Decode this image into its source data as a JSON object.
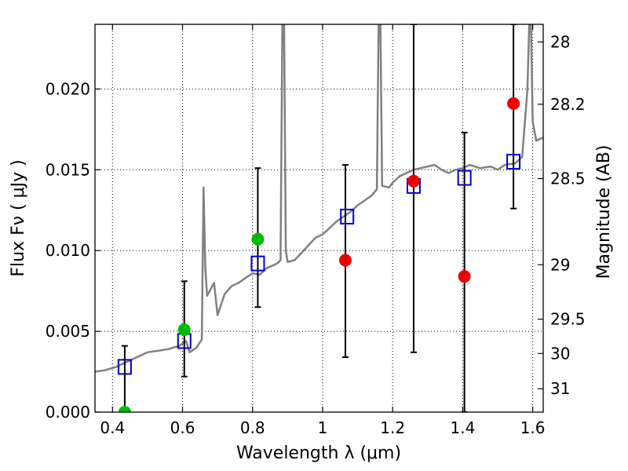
{
  "chart_data": {
    "type": "scatter",
    "xlabel": "Wavelength  λ (μm)",
    "ylabel": "Flux  Fν  ( μJy )",
    "y2label": "Magnitude (AB)",
    "xlim": [
      0.35,
      1.63
    ],
    "ylim": [
      0.0,
      0.024
    ],
    "grid": true,
    "x_ticks": [
      {
        "v": 0.4,
        "label": "0.4"
      },
      {
        "v": 0.6,
        "label": "0.6"
      },
      {
        "v": 0.8,
        "label": "0.8"
      },
      {
        "v": 1.0,
        "label": "1"
      },
      {
        "v": 1.2,
        "label": "1.2"
      },
      {
        "v": 1.4,
        "label": "1.4"
      },
      {
        "v": 1.6,
        "label": "1.6"
      }
    ],
    "y_ticks": [
      {
        "v": 0.0,
        "label": "0.000"
      },
      {
        "v": 0.005,
        "label": "0.005"
      },
      {
        "v": 0.01,
        "label": "0.010"
      },
      {
        "v": 0.015,
        "label": "0.015"
      },
      {
        "v": 0.02,
        "label": "0.020"
      }
    ],
    "mag_ticks": [
      {
        "v": 28,
        "label": "28"
      },
      {
        "v": 28.2,
        "label": "28.2"
      },
      {
        "v": 28.5,
        "label": "28.5"
      },
      {
        "v": 29,
        "label": "29"
      },
      {
        "v": 29.5,
        "label": "29.5"
      },
      {
        "v": 30,
        "label": "30"
      },
      {
        "v": 31,
        "label": "31"
      }
    ],
    "colors": {
      "spectrum": "#808080",
      "model_squares": "#0000cc",
      "detections_green": "#00bb00",
      "detections_red": "#ee0000",
      "errorbars": "#000000"
    },
    "series": [
      {
        "kind": "spectrum",
        "x": [
          0.35,
          0.38,
          0.41,
          0.44,
          0.47,
          0.5,
          0.53,
          0.56,
          0.59,
          0.61,
          0.62,
          0.64,
          0.655,
          0.66,
          0.665,
          0.67,
          0.69,
          0.7,
          0.72,
          0.74,
          0.76,
          0.78,
          0.8,
          0.82,
          0.84,
          0.86,
          0.87,
          0.88,
          0.885,
          0.89,
          0.895,
          0.9,
          0.92,
          0.95,
          0.98,
          1.0,
          1.02,
          1.04,
          1.06,
          1.08,
          1.1,
          1.12,
          1.14,
          1.155,
          1.16,
          1.165,
          1.17,
          1.19,
          1.2,
          1.22,
          1.24,
          1.26,
          1.28,
          1.3,
          1.32,
          1.34,
          1.36,
          1.38,
          1.4,
          1.42,
          1.45,
          1.48,
          1.5,
          1.52,
          1.55,
          1.57,
          1.585,
          1.59,
          1.595,
          1.6,
          1.61,
          1.63
        ],
        "values": [
          0.0025,
          0.0026,
          0.0028,
          0.0031,
          0.0034,
          0.0037,
          0.0038,
          0.0039,
          0.0041,
          0.0044,
          0.0037,
          0.004,
          0.0045,
          0.0139,
          0.009,
          0.0072,
          0.008,
          0.006,
          0.0073,
          0.0078,
          0.008,
          0.0083,
          0.0086,
          0.0085,
          0.0089,
          0.0091,
          0.0092,
          0.0094,
          0.024,
          0.024,
          0.01,
          0.0093,
          0.0094,
          0.0101,
          0.0108,
          0.011,
          0.0114,
          0.0118,
          0.0121,
          0.0124,
          0.0128,
          0.0131,
          0.0134,
          0.0138,
          0.024,
          0.024,
          0.014,
          0.0139,
          0.0142,
          0.0146,
          0.0148,
          0.015,
          0.0151,
          0.0152,
          0.0153,
          0.015,
          0.0148,
          0.015,
          0.0151,
          0.0153,
          0.0151,
          0.0152,
          0.015,
          0.0153,
          0.0154,
          0.0158,
          0.02,
          0.024,
          0.024,
          0.018,
          0.0168,
          0.017
        ]
      },
      {
        "kind": "model_squares",
        "x": [
          0.435,
          0.605,
          0.815,
          1.07,
          1.26,
          1.405,
          1.545
        ],
        "values": [
          0.0028,
          0.0044,
          0.0092,
          0.0121,
          0.014,
          0.0145,
          0.0155
        ]
      },
      {
        "kind": "detections_green",
        "x": [
          0.435,
          0.605,
          0.815
        ],
        "values": [
          0.0,
          0.0051,
          0.0107
        ]
      },
      {
        "kind": "detections_red",
        "x": [
          1.065,
          1.26,
          1.405,
          1.545
        ],
        "values": [
          0.0094,
          0.0143,
          0.0084,
          0.0191
        ]
      },
      {
        "kind": "errorbars",
        "x": [
          0.435,
          0.605,
          0.815,
          1.065,
          1.26,
          1.405,
          1.545
        ],
        "lo": [
          0.0,
          0.0022,
          0.0065,
          0.0034,
          0.0037,
          0.0,
          0.0126
        ],
        "hi": [
          0.0041,
          0.0081,
          0.0151,
          0.0153,
          0.024,
          0.0173,
          0.024
        ]
      }
    ]
  }
}
